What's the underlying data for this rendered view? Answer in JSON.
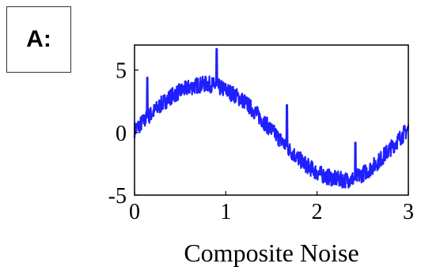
{
  "panel": {
    "label": "A:"
  },
  "chart_data": {
    "type": "line",
    "title": "",
    "xlabel": "Composite Noise",
    "ylabel": "",
    "xlim": [
      0,
      3
    ],
    "ylim": [
      -5,
      7
    ],
    "x_ticks": [
      0,
      1,
      2,
      3
    ],
    "x_tick_labels": [
      "0",
      "1",
      "2",
      "3"
    ],
    "y_ticks": [
      -5,
      0,
      5
    ],
    "y_tick_labels": [
      "-5",
      "0",
      "5"
    ],
    "grid": false,
    "legend": "none",
    "series": [
      {
        "color": "#1f1fff",
        "x": [
          0,
          0.1,
          0.2,
          0.3,
          0.4,
          0.5,
          0.6,
          0.7,
          0.8,
          0.9,
          1.0,
          1.1,
          1.2,
          1.3,
          1.4,
          1.5,
          1.6,
          1.7,
          1.8,
          1.9,
          2.0,
          2.1,
          2.2,
          2.3,
          2.4,
          2.5,
          2.6,
          2.7,
          2.8,
          2.9,
          3.0
        ],
        "values": [
          0.2,
          0.9,
          1.6,
          2.3,
          2.9,
          3.3,
          3.6,
          3.8,
          3.9,
          3.7,
          3.4,
          3.0,
          2.5,
          1.8,
          1.0,
          0.2,
          -0.6,
          -1.4,
          -2.1,
          -2.7,
          -3.2,
          -3.5,
          -3.7,
          -3.8,
          -3.7,
          -3.3,
          -2.8,
          -2.1,
          -1.3,
          -0.5,
          0.3
        ]
      }
    ],
    "spikes": [
      {
        "x": 0.14,
        "peak": 4.4
      },
      {
        "x": 0.9,
        "peak": 6.7
      },
      {
        "x": 1.67,
        "peak": 2.2
      },
      {
        "x": 2.42,
        "peak": -0.8
      }
    ]
  }
}
